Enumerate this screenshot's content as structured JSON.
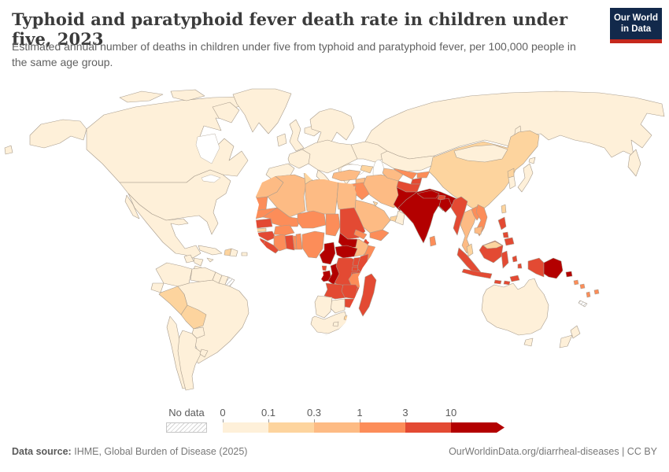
{
  "header": {
    "title": "Typhoid and paratyphoid fever death rate in children under five, 2023",
    "subtitle": "Estimated annual number of deaths in children under five from typhoid and paratyphoid fever, per 100,000 people in the same age group.",
    "logo": {
      "line1": "Our World",
      "line2": "in Data",
      "bg_color": "#12294b",
      "accent_color": "#c5281c"
    }
  },
  "legend": {
    "no_data_label": "No data",
    "tick_labels": [
      "0",
      "0.1",
      "0.3",
      "1",
      "3",
      "10"
    ],
    "palette": [
      "#FEF0D9",
      "#FDD49E",
      "#FDBB84",
      "#FC8D59",
      "#E34A33",
      "#B30000"
    ],
    "no_data_fill": "hatched-gray"
  },
  "footer": {
    "source_label": "Data source:",
    "source_text": "IHME, Global Burden of Disease (2025)",
    "credit": "OurWorldinData.org/diarrheal-diseases | CC BY"
  },
  "chart_data": {
    "type": "choropleth_map",
    "title": "Typhoid and paratyphoid fever death rate in children under five, 2023",
    "unit": "deaths per 100,000 children under five",
    "year": 2023,
    "color_scale_bins": [
      "0–0.1",
      "0.1–0.3",
      "0.3–1",
      "1–3",
      "3–10",
      "10+"
    ],
    "palette": [
      "#FEF0D9",
      "#FDD49E",
      "#FDBB84",
      "#FC8D59",
      "#E34A33",
      "#B30000"
    ],
    "legend_position": "bottom",
    "regions": {
      "canada": 0,
      "usa": 0,
      "greenland": 0,
      "iceland": 0,
      "mexico": 0,
      "guatemala": 0,
      "honduras": 0,
      "nicaragua": 0,
      "costa_rica": 0,
      "panama": 0,
      "cuba": 0,
      "jamaica": 0,
      "haiti": 1,
      "dominican_republic": 0,
      "puerto_rico": 0,
      "colombia": 0,
      "venezuela": 0,
      "guyana": 0,
      "suriname": 0,
      "french_guiana": "nodata",
      "ecuador": 0,
      "peru": 1,
      "brazil": 0,
      "bolivia": 1,
      "paraguay": 0,
      "chile": 0,
      "argentina": 0,
      "uruguay": 0,
      "ireland": 0,
      "uk": 0,
      "scandinavia": 0,
      "spain": 0,
      "france": 0,
      "central_europe": 0,
      "italy": 0,
      "balkans": 0,
      "eastern_europe": 0,
      "russia": 0,
      "kazakhstan": 0,
      "turkey": 2,
      "caucasus": 1,
      "syria": 2,
      "iraq": 3,
      "jordan": 2,
      "israel": 0,
      "iran": 2,
      "saudi_arabia": 2,
      "kuwait": 1,
      "uae": 1,
      "oman": 0,
      "yemen": 3,
      "turkmenistan": 2,
      "uzbekistan": 3,
      "kyrgyzstan": 3,
      "tajikistan": 4,
      "afghanistan": 4,
      "pakistan": 5,
      "india": 5,
      "nepal": 5,
      "bhutan": 4,
      "bangladesh": 5,
      "sri_lanka": 3,
      "china": 1,
      "mongolia": 0,
      "north_korea": 1,
      "south_korea": 0,
      "japan": 0,
      "taiwan": 1,
      "myanmar": 4,
      "thailand": 2,
      "laos": 3,
      "vietnam": 3,
      "cambodia": 2,
      "malaysia": 1,
      "indonesia": 4,
      "timor_leste": 4,
      "philippines": 4,
      "papua_new_guinea": 5,
      "solomon_islands": 3,
      "vanuatu": 3,
      "fiji": 3,
      "new_caledonia": "nodata",
      "australia": 0,
      "new_zealand": 0,
      "morocco": 2,
      "western_sahara": 3,
      "algeria": 2,
      "tunisia": 1,
      "libya": 2,
      "egypt": 2,
      "mauritania": 3,
      "senegal": 4,
      "gambia": 1,
      "guinea": 4,
      "sierra_leone": 4,
      "liberia": 4,
      "cote_divoire": 3,
      "ghana": 4,
      "togo": 3,
      "benin": 3,
      "burkina_faso": 3,
      "mali": 3,
      "niger": 3,
      "nigeria": 3,
      "chad": 3,
      "sudan": 4,
      "eritrea": 3,
      "djibouti": 4,
      "ethiopia": 2,
      "somalia": 3,
      "south_sudan": 5,
      "central_african_republic": 5,
      "cameroon": 5,
      "equatorial_guinea": 4,
      "gabon": 5,
      "congo": 5,
      "drc": 4,
      "uganda": 4,
      "kenya": 4,
      "rwanda": 4,
      "burundi": 4,
      "tanzania": 3,
      "angola": 4,
      "zambia": 4,
      "malawi": 4,
      "mozambique": 3,
      "zimbabwe": 4,
      "botswana": 0,
      "namibia": 0,
      "south_africa": 0,
      "lesotho": 0,
      "eswatini": 1,
      "madagascar": 4
    }
  }
}
